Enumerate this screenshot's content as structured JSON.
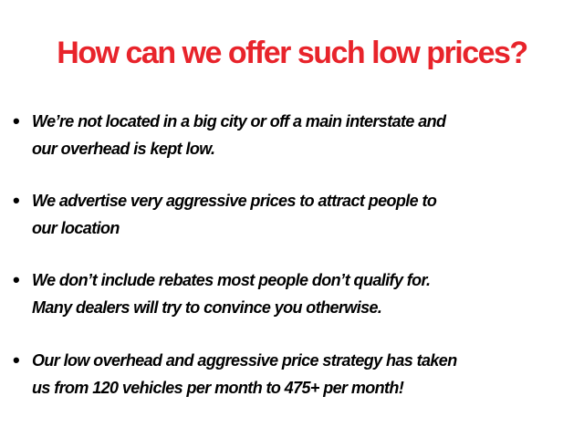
{
  "title": "How can we offer such low prices?",
  "colors": {
    "title": "#e8242b",
    "text": "#000000"
  },
  "bullets": [
    {
      "lines": [
        "We’re not located in a big city or off a main interstate and",
        "our overhead is kept low."
      ]
    },
    {
      "lines": [
        "We advertise very aggressive prices to attract people to",
        "our location"
      ]
    },
    {
      "lines": [
        "We don’t include rebates most people don’t qualify for.",
        "Many dealers will try to convince you otherwise."
      ]
    },
    {
      "lines": [
        "Our low overhead and aggressive price strategy has taken",
        "us from 120 vehicles per month to 475+ per month!"
      ]
    }
  ]
}
